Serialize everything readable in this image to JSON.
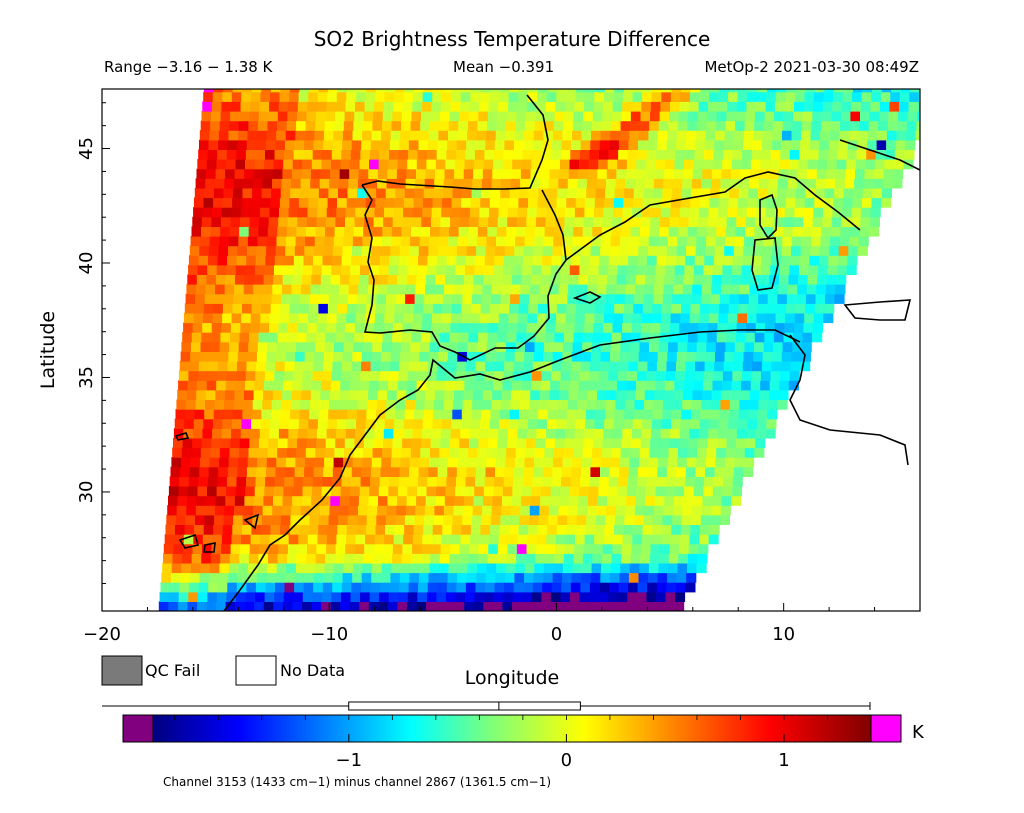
{
  "header": {
    "title": "SO2 Brightness Temperature Difference",
    "range_text": "Range −3.16 − 1.38 K",
    "mean_text": "Mean −0.391",
    "satellite_time": "MetOp-2 2021-03-30 08:49Z"
  },
  "legend": {
    "qc_fail_label": "QC Fail",
    "no_data_label": "No Data",
    "qc_fail_color": "#7a7a7a",
    "no_data_color": "#ffffff"
  },
  "colorbar": {
    "unit": "K",
    "caption": "Channel 3153 (1433 cm−1) minus channel 2867 (1361.5 cm−1)",
    "range": [
      -1.9,
      1.4
    ],
    "ticks": [
      {
        "value": -1,
        "label": "−1"
      },
      {
        "value": 0,
        "label": "0"
      },
      {
        "value": 1,
        "label": "1"
      }
    ],
    "under_color": "#800080",
    "over_color": "#ff00ff",
    "box_stats": {
      "min": -2.2,
      "q1": -1.05,
      "median": -0.35,
      "q3": 0.03,
      "max": 1.38
    }
  },
  "chart_data": {
    "type": "heatmap",
    "title": "SO2 Brightness Temperature Difference",
    "xlabel": "Longitude",
    "ylabel": "Latitude",
    "xlim": [
      -20,
      16
    ],
    "ylim": [
      24.8,
      47.6
    ],
    "x_ticks": [
      {
        "value": -20,
        "label": "−20"
      },
      {
        "value": -10,
        "label": "−10"
      },
      {
        "value": 0,
        "label": "0"
      },
      {
        "value": 10,
        "label": "10"
      }
    ],
    "y_ticks": [
      {
        "value": 30,
        "label": "30"
      },
      {
        "value": 35,
        "label": "35"
      },
      {
        "value": 40,
        "label": "40"
      },
      {
        "value": 45,
        "label": "45"
      }
    ],
    "unit": "K",
    "value_range": [
      -3.16,
      1.38
    ],
    "mean": -0.391,
    "swath": {
      "west_edge": [
        [
          -17.5,
          24.8
        ],
        [
          -15.5,
          47.6
        ]
      ],
      "east_edge": [
        [
          5.3,
          24.8
        ],
        [
          16,
          45.5
        ]
      ]
    }
  }
}
